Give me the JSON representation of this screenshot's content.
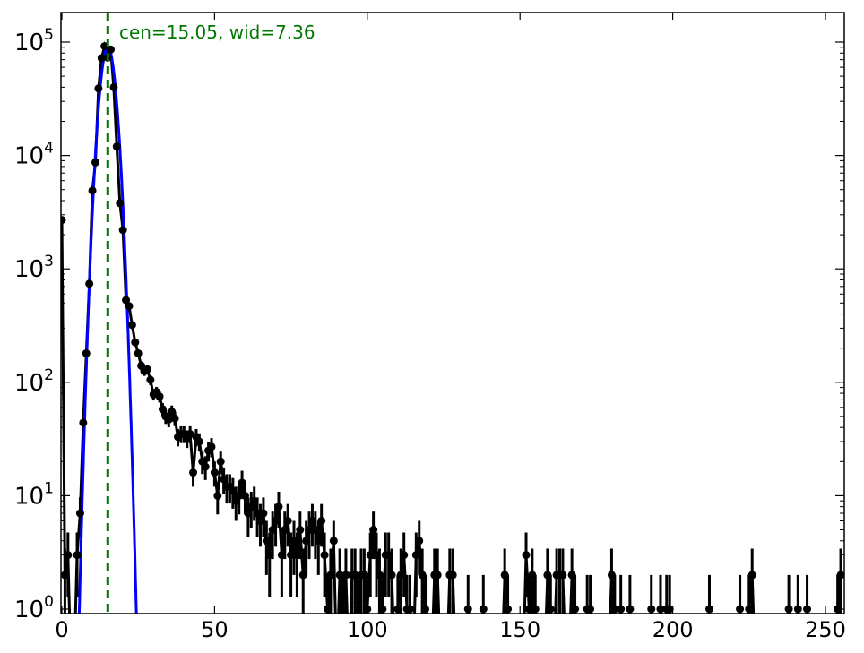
{
  "chart_data": {
    "type": "scatter",
    "title": "",
    "xlabel": "",
    "ylabel": "",
    "xlim": [
      0,
      256
    ],
    "ylim": [
      0.91,
      180000
    ],
    "yscale": "log",
    "grid": false,
    "x_ticks": [
      "0",
      "50",
      "100",
      "150",
      "200",
      "250"
    ],
    "x_tick_values": [
      0,
      50,
      100,
      150,
      200,
      250
    ],
    "y_ticks": [
      {
        "base": "10",
        "exp": "0",
        "value": 1
      },
      {
        "base": "10",
        "exp": "1",
        "value": 10
      },
      {
        "base": "10",
        "exp": "2",
        "value": 100
      },
      {
        "base": "10",
        "exp": "3",
        "value": 1000
      },
      {
        "base": "10",
        "exp": "4",
        "value": 10000
      },
      {
        "base": "10",
        "exp": "5",
        "value": 100000
      }
    ],
    "annotation": "cen=15.05, wid=7.36",
    "fit": {
      "type": "gaussian",
      "center": 15.05,
      "width": 7.36,
      "color": "#0000ff"
    },
    "center_line": {
      "x": 15.05,
      "color": "#007700",
      "style": "dashed"
    },
    "series": [
      {
        "color": "#000000",
        "errors": "sqrt(N)",
        "x_start": 0,
        "values": [
          2700,
          2,
          3,
          0,
          0,
          3,
          7,
          44,
          180,
          740,
          4900,
          8700,
          39000,
          72000,
          92000,
          73000,
          86000,
          40000,
          12000,
          3800,
          2200,
          530,
          470,
          320,
          225,
          180,
          140,
          125,
          130,
          105,
          78,
          82,
          75,
          58,
          50,
          47,
          55,
          48,
          33,
          35,
          35,
          32,
          35,
          16,
          33,
          30,
          20,
          18,
          25,
          27,
          16,
          10,
          20,
          14,
          12,
          12,
          11,
          9,
          10,
          13,
          10,
          7,
          8,
          9,
          7,
          6,
          7,
          4,
          3,
          5,
          6,
          8,
          3,
          5,
          6,
          3,
          4,
          3,
          5,
          2,
          4,
          5,
          6,
          5,
          4,
          6,
          3,
          1,
          2,
          4,
          0,
          2,
          1,
          2,
          0,
          2,
          2,
          1,
          2,
          2,
          1,
          3,
          5,
          3,
          2,
          1,
          3,
          3,
          2,
          0,
          1,
          2,
          3,
          1,
          1,
          0,
          3,
          4,
          2,
          1,
          0,
          0,
          2,
          2,
          0,
          0,
          0,
          2,
          2,
          0,
          0,
          0,
          0,
          1,
          0,
          0,
          0,
          0,
          1,
          0,
          0,
          0,
          0,
          0,
          0,
          2,
          1,
          0,
          0,
          0,
          0,
          0,
          3,
          1,
          2,
          1,
          0,
          0,
          0,
          2,
          1,
          0,
          2,
          2,
          2,
          0,
          0,
          2,
          1,
          0,
          0,
          0,
          1,
          1,
          0,
          0,
          0,
          0,
          0,
          0,
          2,
          1,
          0,
          1,
          0,
          0,
          1,
          0,
          0,
          0,
          0,
          0,
          0,
          1,
          0,
          0,
          1,
          0,
          1,
          1,
          0,
          0,
          0,
          0,
          0,
          0,
          0,
          0,
          0,
          0,
          0,
          0,
          1,
          0,
          0,
          0,
          0,
          0,
          0,
          0,
          0,
          0,
          1,
          0,
          0,
          1,
          2,
          0,
          0,
          0,
          0,
          0,
          0,
          0,
          0,
          0,
          0,
          0,
          1,
          0,
          0,
          1,
          0,
          0,
          1,
          0,
          0,
          0,
          0,
          0,
          0,
          0,
          0,
          0,
          1,
          2
        ]
      }
    ]
  }
}
